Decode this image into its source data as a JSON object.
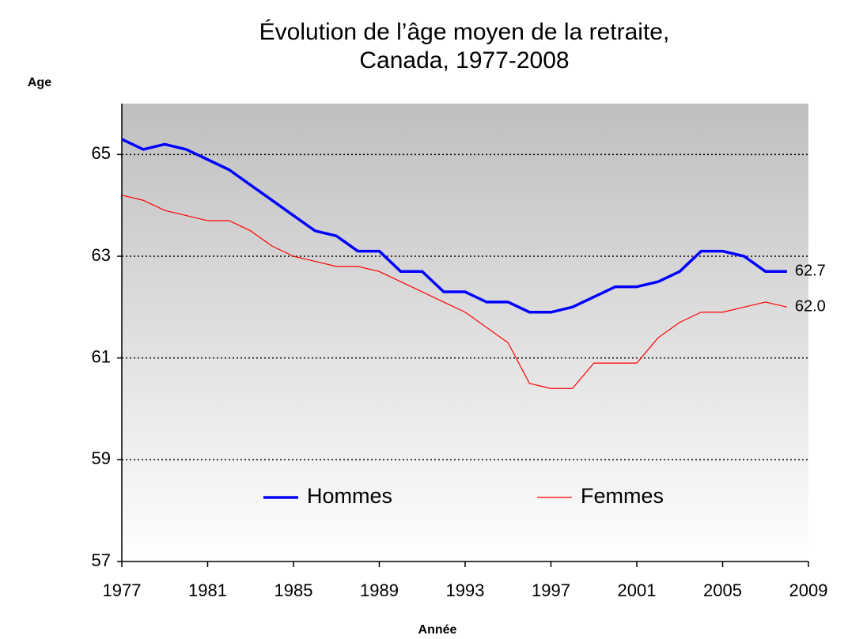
{
  "chart_data": {
    "type": "line",
    "title": [
      "Évolution de l’âge moyen  de la retraite,",
      "Canada, 1977-2008"
    ],
    "y_label": "Age",
    "x_label": "Année",
    "x": [
      1977,
      1978,
      1979,
      1980,
      1981,
      1982,
      1983,
      1984,
      1985,
      1986,
      1987,
      1988,
      1989,
      1990,
      1991,
      1992,
      1993,
      1994,
      1995,
      1996,
      1997,
      1998,
      1999,
      2000,
      2001,
      2002,
      2003,
      2004,
      2005,
      2006,
      2007,
      2008
    ],
    "series": [
      {
        "name": "Hommes",
        "color": "#0000ff",
        "width": 3.5,
        "values": [
          65.3,
          65.1,
          65.2,
          65.1,
          64.9,
          64.7,
          64.4,
          64.1,
          63.8,
          63.5,
          63.4,
          63.1,
          63.1,
          62.7,
          62.7,
          62.3,
          62.3,
          62.1,
          62.1,
          61.9,
          61.9,
          62.0,
          62.2,
          62.4,
          62.4,
          62.5,
          62.7,
          63.1,
          63.1,
          63.0,
          62.7,
          62.7
        ],
        "value_labels": [
          null,
          null,
          null,
          null,
          null,
          null,
          null,
          null,
          null,
          null,
          null,
          null,
          null,
          null,
          null,
          null,
          null,
          null,
          null,
          null,
          null,
          null,
          null,
          null,
          null,
          null,
          null,
          null,
          null,
          null,
          null,
          "62.7"
        ]
      },
      {
        "name": "Femmes",
        "color": "#ff0000",
        "width": 1.2,
        "values": [
          64.2,
          64.1,
          63.9,
          63.8,
          63.7,
          63.7,
          63.5,
          63.2,
          63.0,
          62.9,
          62.8,
          62.8,
          62.7,
          62.5,
          62.3,
          62.1,
          61.9,
          61.6,
          61.3,
          60.5,
          60.4,
          60.4,
          60.9,
          60.9,
          60.9,
          61.4,
          61.7,
          61.9,
          61.9,
          62.0,
          62.1,
          62.0
        ],
        "value_labels": [
          null,
          null,
          null,
          null,
          null,
          null,
          null,
          null,
          null,
          null,
          null,
          null,
          null,
          null,
          null,
          null,
          null,
          null,
          null,
          null,
          null,
          null,
          null,
          null,
          null,
          null,
          null,
          null,
          null,
          null,
          null,
          "62.0"
        ]
      }
    ],
    "xlim": [
      1977,
      2009
    ],
    "xticks": [
      1977,
      1981,
      1985,
      1989,
      1993,
      1997,
      2001,
      2005,
      2009
    ],
    "ylim": [
      57,
      66
    ],
    "yticks": [
      57,
      59,
      61,
      63,
      65
    ],
    "grid": true,
    "legend": "lower center"
  }
}
